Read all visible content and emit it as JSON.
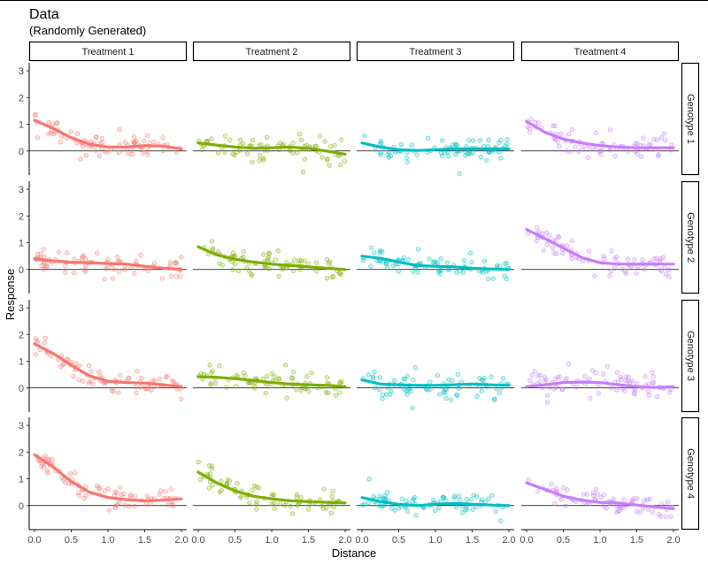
{
  "chart_data": {
    "type": "scatter",
    "title": "Data",
    "subtitle": "(Randomly Generated)",
    "xlabel": "Distance",
    "ylabel": "Response",
    "xlim": [
      0,
      2
    ],
    "ylim": [
      -0.9,
      3.3
    ],
    "x_ticks": [
      0.0,
      0.5,
      1.0,
      1.5,
      2.0
    ],
    "x_tick_labels": [
      "0.0",
      "0.5",
      "1.0",
      "1.5",
      "2.0"
    ],
    "y_ticks": [
      0,
      1,
      2,
      3
    ],
    "y_tick_labels": [
      "0",
      "1",
      "2",
      "3"
    ],
    "reference_line_y": 0,
    "columns": [
      "Treatment 1",
      "Treatment 2",
      "Treatment 3",
      "Treatment 4"
    ],
    "rows": [
      "Genotype 1",
      "Genotype 2",
      "Genotype 3",
      "Genotype 4"
    ],
    "colors": {
      "Treatment 1": "#F8766D",
      "Treatment 2": "#7CAE00",
      "Treatment 3": "#00BFC4",
      "Treatment 4": "#C77CFF"
    },
    "trend_x": [
      0.0,
      0.25,
      0.5,
      0.75,
      1.0,
      1.25,
      1.5,
      1.75,
      2.0
    ],
    "panels": [
      {
        "row": "Genotype 1",
        "column": "Treatment 1",
        "trend_y": [
          1.15,
          0.85,
          0.5,
          0.25,
          0.15,
          0.15,
          0.2,
          0.18,
          0.08
        ]
      },
      {
        "row": "Genotype 1",
        "column": "Treatment 2",
        "trend_y": [
          0.3,
          0.22,
          0.15,
          0.1,
          0.12,
          0.15,
          0.1,
          0.0,
          -0.12
        ]
      },
      {
        "row": "Genotype 1",
        "column": "Treatment 3",
        "trend_y": [
          0.3,
          0.15,
          0.05,
          0.02,
          0.05,
          0.08,
          0.08,
          0.08,
          0.08
        ]
      },
      {
        "row": "Genotype 1",
        "column": "Treatment 4",
        "trend_y": [
          1.1,
          0.7,
          0.45,
          0.3,
          0.2,
          0.15,
          0.12,
          0.12,
          0.12
        ]
      },
      {
        "row": "Genotype 2",
        "column": "Treatment 1",
        "trend_y": [
          0.4,
          0.32,
          0.27,
          0.25,
          0.22,
          0.2,
          0.12,
          0.05,
          0.0
        ]
      },
      {
        "row": "Genotype 2",
        "column": "Treatment 2",
        "trend_y": [
          0.85,
          0.55,
          0.38,
          0.28,
          0.2,
          0.15,
          0.1,
          0.05,
          0.0
        ]
      },
      {
        "row": "Genotype 2",
        "column": "Treatment 3",
        "trend_y": [
          0.5,
          0.42,
          0.28,
          0.15,
          0.12,
          0.1,
          0.05,
          0.02,
          0.0
        ]
      },
      {
        "row": "Genotype 2",
        "column": "Treatment 4",
        "trend_y": [
          1.5,
          1.15,
          0.8,
          0.45,
          0.25,
          0.2,
          0.2,
          0.2,
          0.2
        ]
      },
      {
        "row": "Genotype 3",
        "column": "Treatment 1",
        "trend_y": [
          1.65,
          1.3,
          0.85,
          0.45,
          0.25,
          0.2,
          0.18,
          0.12,
          0.05
        ]
      },
      {
        "row": "Genotype 3",
        "column": "Treatment 2",
        "trend_y": [
          0.42,
          0.4,
          0.35,
          0.28,
          0.2,
          0.15,
          0.12,
          0.1,
          0.05
        ]
      },
      {
        "row": "Genotype 3",
        "column": "Treatment 3",
        "trend_y": [
          0.3,
          0.15,
          0.12,
          0.1,
          0.1,
          0.12,
          0.15,
          0.12,
          0.1
        ]
      },
      {
        "row": "Genotype 3",
        "column": "Treatment 4",
        "trend_y": [
          0.05,
          0.12,
          0.2,
          0.22,
          0.2,
          0.12,
          0.05,
          0.02,
          0.05
        ]
      },
      {
        "row": "Genotype 4",
        "column": "Treatment 1",
        "trend_y": [
          1.9,
          1.45,
          0.9,
          0.5,
          0.3,
          0.22,
          0.18,
          0.2,
          0.25
        ]
      },
      {
        "row": "Genotype 4",
        "column": "Treatment 2",
        "trend_y": [
          1.25,
          0.85,
          0.55,
          0.35,
          0.25,
          0.18,
          0.15,
          0.12,
          0.1
        ]
      },
      {
        "row": "Genotype 4",
        "column": "Treatment 3",
        "trend_y": [
          0.3,
          0.15,
          0.05,
          0.0,
          0.05,
          0.08,
          0.05,
          0.02,
          0.0
        ]
      },
      {
        "row": "Genotype 4",
        "column": "Treatment 4",
        "trend_y": [
          0.85,
          0.6,
          0.35,
          0.2,
          0.12,
          0.1,
          0.02,
          -0.05,
          -0.12
        ]
      }
    ]
  }
}
